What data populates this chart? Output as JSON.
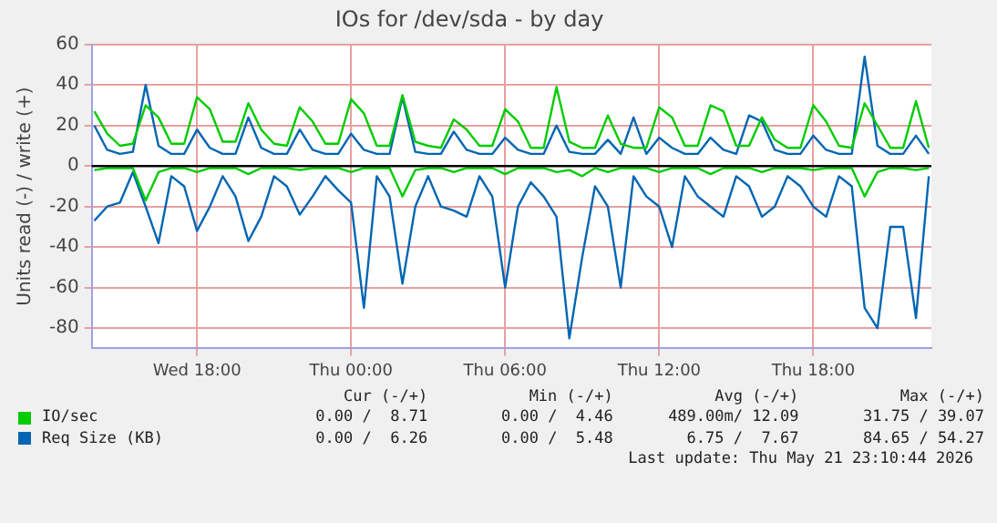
{
  "chart_data": {
    "type": "line",
    "title": "IOs for /dev/sda - by day",
    "ylabel": "Units read (-) / write (+)",
    "x": [
      "2026-05-20T14:00",
      "2026-05-20T14:30",
      "2026-05-20T15:00",
      "2026-05-20T15:30",
      "2026-05-20T16:00",
      "2026-05-20T16:30",
      "2026-05-20T17:00",
      "2026-05-20T17:30",
      "2026-05-20T18:00",
      "2026-05-20T18:30",
      "2026-05-20T19:00",
      "2026-05-20T19:30",
      "2026-05-20T20:00",
      "2026-05-20T20:30",
      "2026-05-20T21:00",
      "2026-05-20T21:30",
      "2026-05-20T22:00",
      "2026-05-20T22:30",
      "2026-05-20T23:00",
      "2026-05-20T23:30",
      "2026-05-21T00:00",
      "2026-05-21T00:30",
      "2026-05-21T01:00",
      "2026-05-21T01:30",
      "2026-05-21T02:00",
      "2026-05-21T02:30",
      "2026-05-21T03:00",
      "2026-05-21T03:30",
      "2026-05-21T04:00",
      "2026-05-21T04:30",
      "2026-05-21T05:00",
      "2026-05-21T05:30",
      "2026-05-21T06:00",
      "2026-05-21T06:30",
      "2026-05-21T07:00",
      "2026-05-21T07:30",
      "2026-05-21T08:00",
      "2026-05-21T08:30",
      "2026-05-21T09:00",
      "2026-05-21T09:30",
      "2026-05-21T10:00",
      "2026-05-21T10:30",
      "2026-05-21T11:00",
      "2026-05-21T11:30",
      "2026-05-21T12:00",
      "2026-05-21T12:30",
      "2026-05-21T13:00",
      "2026-05-21T13:30",
      "2026-05-21T14:00",
      "2026-05-21T14:30",
      "2026-05-21T15:00",
      "2026-05-21T15:30",
      "2026-05-21T16:00",
      "2026-05-21T16:30",
      "2026-05-21T17:00",
      "2026-05-21T17:30",
      "2026-05-21T18:00",
      "2026-05-21T18:30",
      "2026-05-21T19:00",
      "2026-05-21T19:30",
      "2026-05-21T20:00",
      "2026-05-21T20:30",
      "2026-05-21T21:00",
      "2026-05-21T21:30",
      "2026-05-21T22:00",
      "2026-05-21T22:30"
    ],
    "series": [
      {
        "name": "IO/sec",
        "color": "#00cc00",
        "values": [
          27,
          16,
          10,
          11,
          30,
          24,
          11,
          11,
          34,
          28,
          12,
          12,
          31,
          18,
          11,
          10,
          29,
          22,
          11,
          11,
          33,
          26,
          10,
          10,
          35,
          12,
          10,
          9,
          23,
          18,
          10,
          10,
          28,
          22,
          9,
          9,
          39,
          12,
          9,
          9,
          25,
          11,
          9,
          9,
          29,
          24,
          10,
          10,
          30,
          27,
          10,
          10,
          24,
          13,
          9,
          9,
          30,
          22,
          10,
          9,
          31,
          20,
          9,
          9,
          32,
          9
        ]
      },
      {
        "color": "#00cc00",
        "values": [
          -2,
          -1,
          -1,
          -1,
          -17,
          -3,
          -1,
          -1,
          -3,
          -1,
          -1,
          -1,
          -4,
          -1,
          -1,
          -1,
          -2,
          -1,
          -1,
          -1,
          -3,
          -1,
          -1,
          -1,
          -15,
          -2,
          -1,
          -1,
          -3,
          -1,
          -1,
          -1,
          -4,
          -1,
          -1,
          -1,
          -3,
          -2,
          -5,
          -1,
          -3,
          -1,
          -1,
          -1,
          -3,
          -1,
          -1,
          -1,
          -4,
          -1,
          -1,
          -1,
          -3,
          -1,
          -1,
          -1,
          -2,
          -1,
          -1,
          -1,
          -15,
          -3,
          -1,
          -1,
          -2,
          -1
        ]
      },
      {
        "name": "Req Size (KB)",
        "color": "#0066b3",
        "values": [
          20,
          8,
          6,
          7,
          40,
          10,
          6,
          6,
          18,
          9,
          6,
          6,
          24,
          9,
          6,
          6,
          18,
          8,
          6,
          6,
          16,
          8,
          6,
          6,
          34,
          7,
          6,
          6,
          17,
          8,
          6,
          6,
          14,
          8,
          6,
          6,
          20,
          7,
          6,
          6,
          13,
          6,
          24,
          6,
          14,
          9,
          6,
          6,
          14,
          8,
          6,
          25,
          22,
          8,
          6,
          6,
          15,
          8,
          6,
          6,
          54,
          10,
          6,
          6,
          15,
          6
        ]
      },
      {
        "color": "#0066b3",
        "values": [
          -27,
          -20,
          -18,
          -3,
          -20,
          -38,
          -5,
          -10,
          -32,
          -20,
          -5,
          -15,
          -37,
          -25,
          -5,
          -10,
          -24,
          -15,
          -5,
          -12,
          -18,
          -70,
          -5,
          -15,
          -58,
          -20,
          -5,
          -20,
          -22,
          -25,
          -5,
          -15,
          -60,
          -20,
          -8,
          -15,
          -25,
          -85,
          -45,
          -10,
          -20,
          -60,
          -5,
          -15,
          -20,
          -40,
          -5,
          -15,
          -20,
          -25,
          -5,
          -10,
          -25,
          -20,
          -5,
          -10,
          -20,
          -25,
          -5,
          -10,
          -70,
          -80,
          -30,
          -30,
          -75,
          -5
        ]
      }
    ],
    "xlim": [
      "2026-05-20T13:54",
      "2026-05-21T22:36"
    ],
    "xticks": [
      {
        "value": "2026-05-20T18:00",
        "label": "Wed 18:00"
      },
      {
        "value": "2026-05-21T00:00",
        "label": "Thu 00:00"
      },
      {
        "value": "2026-05-21T06:00",
        "label": "Thu 06:00"
      },
      {
        "value": "2026-05-21T12:00",
        "label": "Thu 12:00"
      },
      {
        "value": "2026-05-21T18:00",
        "label": "Thu 18:00"
      }
    ],
    "ylim": [
      -90,
      60
    ],
    "yticks": [
      -80,
      -60,
      -40,
      -20,
      0,
      20,
      40,
      60
    ],
    "ref_lines": [
      {
        "axis": "y",
        "value": 0,
        "color": "#000000"
      }
    ],
    "grid": true,
    "legend": "bottom",
    "marker": "none",
    "line_style": "solid",
    "annotations": [
      "Cur (-/+)",
      "Min (-/+)",
      "Avg (-/+)",
      "Max (-/+)",
      "0.00 /  8.71",
      "0.00 /  4.46",
      "489.00m/ 12.09",
      "31.75 / 39.07",
      "0.00 /  6.26",
      "0.00 /  5.48",
      "6.75 /  7.67",
      "84.65 / 54.27",
      "Last update: Thu May 21 23:10:44 2026"
    ]
  }
}
